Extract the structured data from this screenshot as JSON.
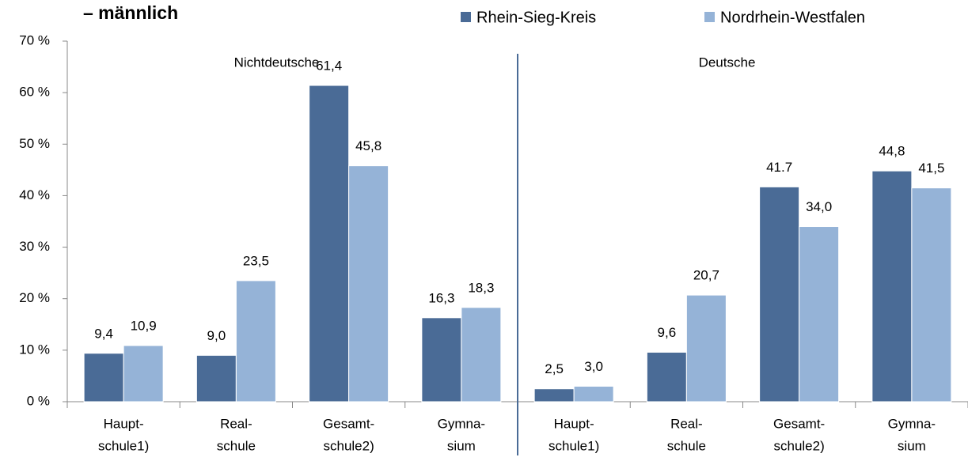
{
  "chart_data": {
    "type": "bar",
    "title": "– männlich",
    "categories": [
      [
        "Haupt-",
        "schule1)"
      ],
      [
        "Real-",
        "schule"
      ],
      [
        "Gesamt-",
        "schule2)"
      ],
      [
        "Gymna-",
        "sium"
      ],
      [
        "Haupt-",
        "schule1)"
      ],
      [
        "Real-",
        "schule"
      ],
      [
        "Gesamt-",
        "schule2)"
      ],
      [
        "Gymna-",
        "sium"
      ]
    ],
    "series": [
      {
        "name": "Rhein-Sieg-Kreis",
        "color": "#4a6b96",
        "values": [
          9.4,
          9.0,
          61.4,
          16.3,
          2.5,
          9.6,
          41.7,
          44.8
        ],
        "value_labels": [
          "9,4",
          "9,0",
          "61,4",
          "16,3",
          "2,5",
          "9,6",
          "41.7",
          "44,8"
        ]
      },
      {
        "name": "Nordrhein-Westfalen",
        "color": "#95b3d7",
        "values": [
          10.9,
          23.5,
          45.8,
          18.3,
          3.0,
          20.7,
          34.0,
          41.5
        ],
        "value_labels": [
          "10,9",
          "23,5",
          "45,8",
          "18,3",
          "3,0",
          "20,7",
          "34,0",
          "41,5"
        ]
      }
    ],
    "annotations": [
      "Nichtdeutsche",
      "Deutsche"
    ],
    "ylim": [
      0,
      70
    ],
    "yticks": [
      {
        "value": 0,
        "label": "0 %"
      },
      {
        "value": 10,
        "label": "10 %"
      },
      {
        "value": 20,
        "label": "20 %"
      },
      {
        "value": 30,
        "label": "30 %"
      },
      {
        "value": 40,
        "label": "40 %"
      },
      {
        "value": 50,
        "label": "50 %"
      },
      {
        "value": 60,
        "label": "60 %"
      },
      {
        "value": 70,
        "label": "70 %"
      }
    ],
    "grid": false,
    "legend": "top"
  }
}
